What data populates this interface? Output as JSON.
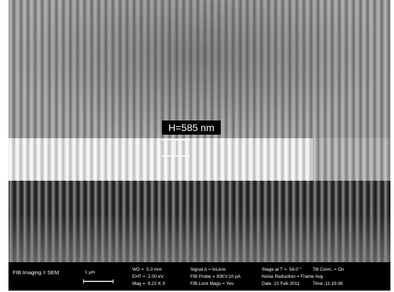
{
  "annotation": {
    "label": "H=585 nm"
  },
  "info_bar": {
    "imaging": "FIB Imaging = SEM",
    "scale_bar": "1 μm",
    "columns": [
      [
        "WD =  5.0 mm",
        "EHT =  2.00 kV",
        "Mag =  9.22 K X"
      ],
      [
        "Signal A = InLens",
        "FIB Probe = 30KV:10 pA",
        "FIB Lock Mags = Yes"
      ],
      [
        "Stage at T =  54.0 °",
        "Noise Reduction = Frame Avg",
        "Date :21 Feb 2011"
      ],
      [
        "Tilt Corrn. = On",
        "",
        "Time :11:19:36"
      ]
    ]
  }
}
